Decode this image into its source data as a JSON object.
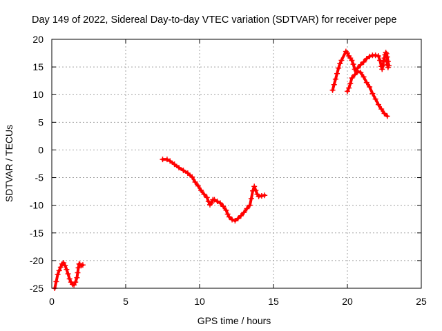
{
  "chart_data": {
    "type": "scatter",
    "title": "Day 149 of 2022, Sidereal Day-to-day VTEC variation (SDTVAR) for receiver pepe",
    "xlabel": "GPS time / hours",
    "ylabel": "SDTVAR / TECUs",
    "xlim": [
      0,
      25
    ],
    "ylim": [
      -25,
      20
    ],
    "xticks": [
      0,
      5,
      10,
      15,
      20,
      25
    ],
    "yticks": [
      -25,
      -20,
      -15,
      -10,
      -5,
      0,
      5,
      10,
      15,
      20
    ],
    "grid": true,
    "marker": "plus",
    "color": "#ff0000",
    "series": [
      {
        "name": "segment-1",
        "x": [
          0.2,
          0.3,
          0.4,
          0.5,
          0.6,
          0.7,
          0.8,
          0.9,
          1.0,
          1.1,
          1.2,
          1.3,
          1.4,
          1.5,
          1.6,
          1.7,
          1.75,
          1.8,
          1.85,
          1.9,
          2.0,
          2.1
        ],
        "y": [
          -25.0,
          -23.8,
          -22.5,
          -21.8,
          -21.2,
          -20.6,
          -20.4,
          -20.9,
          -21.6,
          -22.4,
          -23.3,
          -23.9,
          -24.3,
          -24.4,
          -23.9,
          -23.1,
          -22.2,
          -21.3,
          -20.6,
          -20.7,
          -20.9,
          -20.8
        ]
      },
      {
        "name": "segment-2",
        "x": [
          7.5,
          7.8,
          8.0,
          8.3,
          8.6,
          8.9,
          9.2,
          9.5,
          9.7,
          9.9,
          10.1,
          10.3,
          10.5,
          10.6,
          10.7,
          10.8,
          10.9,
          11.0,
          11.2,
          11.4,
          11.6,
          11.8,
          11.9,
          12.0,
          12.2,
          12.4,
          12.6,
          12.8,
          13.0,
          13.2,
          13.4,
          13.5,
          13.6,
          13.7,
          13.8,
          13.9,
          14.0,
          14.2,
          14.4
        ],
        "y": [
          -1.7,
          -1.7,
          -2.0,
          -2.6,
          -3.2,
          -3.7,
          -4.2,
          -4.9,
          -5.8,
          -6.5,
          -7.3,
          -8.0,
          -8.6,
          -9.3,
          -9.9,
          -9.6,
          -9.0,
          -9.0,
          -9.3,
          -9.6,
          -10.2,
          -10.9,
          -11.6,
          -12.1,
          -12.6,
          -12.8,
          -12.4,
          -11.9,
          -11.3,
          -10.6,
          -10.0,
          -8.8,
          -7.4,
          -6.6,
          -7.3,
          -8.0,
          -8.4,
          -8.3,
          -8.2
        ]
      },
      {
        "name": "segment-3",
        "x": [
          19.0,
          19.1,
          19.2,
          19.3,
          19.4,
          19.5,
          19.6,
          19.9,
          20.0,
          20.1,
          20.2,
          20.3,
          20.4,
          20.5,
          20.6
        ],
        "y": [
          10.8,
          11.8,
          12.8,
          13.8,
          14.8,
          15.6,
          16.2,
          17.8,
          17.5,
          17.0,
          16.6,
          16.2,
          15.5,
          14.6,
          14.3
        ]
      },
      {
        "name": "segment-4",
        "x": [
          20.0,
          20.1,
          20.2,
          20.3,
          20.5,
          20.7,
          20.9,
          21.1,
          21.3,
          21.5,
          21.7,
          21.9,
          22.1,
          22.3,
          22.5,
          22.7
        ],
        "y": [
          10.6,
          11.2,
          12.0,
          13.0,
          13.6,
          14.2,
          14.0,
          13.2,
          12.2,
          11.4,
          10.2,
          9.2,
          8.2,
          7.4,
          6.6,
          6.1
        ]
      },
      {
        "name": "segment-5",
        "x": [
          20.7,
          20.9,
          21.1,
          21.3,
          21.5,
          21.7,
          21.9,
          22.1,
          22.2,
          22.3,
          22.35,
          22.4,
          22.45,
          22.5,
          22.55,
          22.6,
          22.65,
          22.7,
          22.75,
          22.8,
          22.75,
          22.7,
          22.65
        ],
        "y": [
          14.8,
          15.4,
          15.9,
          16.5,
          16.9,
          17.1,
          17.1,
          17.0,
          16.2,
          15.1,
          14.6,
          15.2,
          16.0,
          16.6,
          17.2,
          17.6,
          17.4,
          16.8,
          16.0,
          15.3,
          14.9,
          15.4,
          16.2
        ]
      }
    ]
  }
}
